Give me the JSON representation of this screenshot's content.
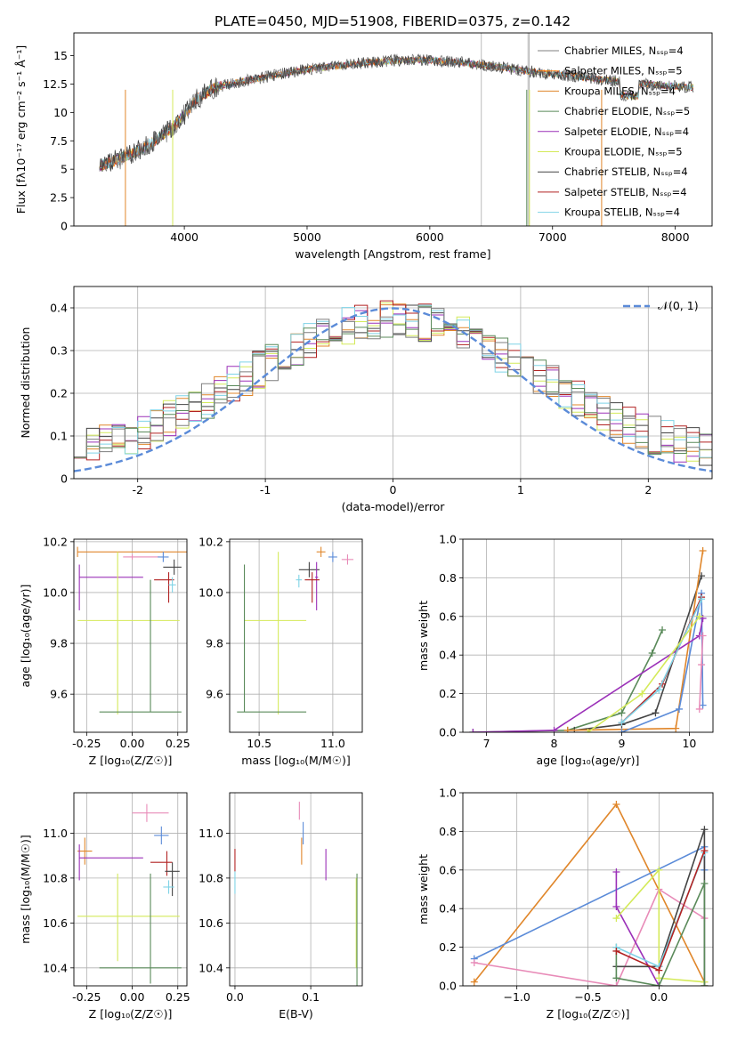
{
  "figure": {
    "title": "PLATE=0450, MJD=51908, FIBERID=0375, z=0.142"
  },
  "chart_data": [
    {
      "id": "spectrum",
      "type": "line",
      "xlabel": "wavelength [Angstrom, rest frame]",
      "ylabel": "Flux [fλ10⁻¹⁷ erg cm⁻² s⁻¹ Å⁻¹]",
      "xlim": [
        3100,
        8300
      ],
      "ylim": [
        0,
        17
      ],
      "xticks": [
        4000,
        5000,
        6000,
        7000,
        8000
      ],
      "yticks": [
        0.0,
        2.5,
        5.0,
        7.5,
        10.0,
        12.5,
        15.0
      ],
      "grid": false,
      "legend_position": "upper-right",
      "continuum": {
        "x": [
          3310,
          3450,
          3600,
          3750,
          3900,
          4000,
          4100,
          4250,
          4500,
          4750,
          5000,
          5250,
          5500,
          5750,
          6000,
          6250,
          6500,
          6750,
          7000,
          7250,
          7500,
          7750,
          8000,
          8150
        ],
        "y": [
          5.3,
          5.8,
          6.5,
          7.4,
          8.6,
          9.8,
          11.2,
          12.2,
          12.8,
          13.3,
          13.8,
          14.1,
          14.4,
          14.6,
          14.6,
          14.4,
          14.1,
          13.7,
          13.4,
          13.1,
          12.8,
          12.5,
          12.3,
          12.2
        ]
      },
      "series": [
        {
          "name": "Chabrier MILES, N_SSP=4",
          "color": "#7f7f7f"
        },
        {
          "name": "Salpeter MILES, N_SSP=5",
          "color": "#ff7f0e"
        },
        {
          "name": "Kroupa MILES, N_SSP=4",
          "color": "#e0862a"
        },
        {
          "name": "Chabrier ELODIE, N_SSP=5",
          "color": "#5a8a5a"
        },
        {
          "name": "Salpeter ELODIE, N_SSP=4",
          "color": "#9b30b8"
        },
        {
          "name": "Kroupa ELODIE, N_SSP=5",
          "color": "#d4ea5a"
        },
        {
          "name": "Chabrier STELIB, N_SSP=4",
          "color": "#444444"
        },
        {
          "name": "Salpeter STELIB, N_SSP=4",
          "color": "#b22222"
        },
        {
          "name": "Kroupa STELIB, N_SSP=4",
          "color": "#7fd3e6"
        }
      ]
    },
    {
      "id": "residuals",
      "type": "area",
      "xlabel": "(data-model)/error",
      "ylabel": "Normed distribution",
      "xlim": [
        -2.5,
        2.5
      ],
      "ylim": [
        0,
        0.45
      ],
      "xticks": [
        -2,
        -1,
        0,
        1,
        2
      ],
      "yticks": [
        0.0,
        0.1,
        0.2,
        0.3,
        0.4
      ],
      "grid": true,
      "legend_position": "upper-right",
      "reference": {
        "name": "𝒩(0, 1)",
        "mean": 0,
        "sigma": 1,
        "color": "#5b8bd8"
      },
      "histogram_bin_width": 0.1,
      "series_colors": [
        "#e0862a",
        "#9b30b8",
        "#d4ea5a",
        "#444444",
        "#b22222",
        "#7fd3e6",
        "#5a8a5a",
        "#7f7f7f"
      ]
    },
    {
      "id": "age_vs_Z",
      "type": "scatter",
      "xlabel": "Z [log₁₀(Z/Z☉)]",
      "ylabel": "age  [log₁₀(age/yr)]",
      "xlim": [
        -0.32,
        0.3
      ],
      "ylim": [
        9.45,
        10.21
      ],
      "xticks": [
        "-0.25",
        "0.00",
        "0.25"
      ],
      "yticks": [
        "9.6",
        "9.8",
        "10.0",
        "10.2"
      ],
      "grid": true,
      "points": [
        {
          "x": -0.3,
          "y": 10.16,
          "xerr": [
            0.0,
            0.6
          ],
          "yerr": [
            0.02,
            0.02
          ],
          "color": "#e0862a"
        },
        {
          "x": 0.0,
          "y": 10.14,
          "xerr": [
            0.05,
            0.15
          ],
          "yerr": [
            0.01,
            0.01
          ],
          "color": "#e88bb8"
        },
        {
          "x": 0.17,
          "y": 10.14,
          "xerr": [
            0.03,
            0.03
          ],
          "yerr": [
            0.02,
            0.02
          ],
          "color": "#5b8bd8"
        },
        {
          "x": 0.23,
          "y": 10.1,
          "xerr": [
            0.06,
            0.04
          ],
          "yerr": [
            0.03,
            0.03
          ],
          "color": "#444444"
        },
        {
          "x": -0.29,
          "y": 10.06,
          "xerr": [
            0.0,
            0.35
          ],
          "yerr": [
            0.13,
            0.05
          ],
          "color": "#9b30b8"
        },
        {
          "x": 0.2,
          "y": 10.05,
          "xerr": [
            0.08,
            0.03
          ],
          "yerr": [
            0.09,
            0.03
          ],
          "color": "#b22222"
        },
        {
          "x": 0.22,
          "y": 10.03,
          "xerr": [
            0.02,
            0.02
          ],
          "yerr": [
            0.03,
            0.03
          ],
          "color": "#7fd3e6"
        },
        {
          "x": -0.08,
          "y": 9.89,
          "xerr": [
            0.22,
            0.34
          ],
          "yerr": [
            0.37,
            0.27
          ],
          "color": "#d4ea5a"
        },
        {
          "x": 0.1,
          "y": 9.53,
          "xerr": [
            0.28,
            0.17
          ],
          "yerr": [
            0.0,
            0.52
          ],
          "color": "#5a8a5a"
        }
      ]
    },
    {
      "id": "age_vs_mass",
      "type": "scatter",
      "xlabel": "mass [log₁₀(M/M☉)]",
      "ylabel": "",
      "xlim": [
        10.3,
        11.2
      ],
      "ylim": [
        9.45,
        10.21
      ],
      "xticks": [
        "10.5",
        "11.0"
      ],
      "yticks": [
        "9.6",
        "9.8",
        "10.0",
        "10.2"
      ],
      "grid": true,
      "points": [
        {
          "x": 10.92,
          "y": 10.16,
          "xerr": [
            0.03,
            0.03
          ],
          "yerr": [
            0.02,
            0.02
          ],
          "color": "#e0862a"
        },
        {
          "x": 11.1,
          "y": 10.13,
          "xerr": [
            0.04,
            0.04
          ],
          "yerr": [
            0.02,
            0.02
          ],
          "color": "#e88bb8"
        },
        {
          "x": 11.0,
          "y": 10.14,
          "xerr": [
            0.03,
            0.03
          ],
          "yerr": [
            0.02,
            0.02
          ],
          "color": "#5b8bd8"
        },
        {
          "x": 10.84,
          "y": 10.09,
          "xerr": [
            0.07,
            0.07
          ],
          "yerr": [
            0.03,
            0.03
          ],
          "color": "#444444"
        },
        {
          "x": 10.89,
          "y": 10.06,
          "xerr": [
            0.01,
            0.01
          ],
          "yerr": [
            0.13,
            0.06
          ],
          "color": "#9b30b8"
        },
        {
          "x": 10.86,
          "y": 10.05,
          "xerr": [
            0.05,
            0.05
          ],
          "yerr": [
            0.09,
            0.03
          ],
          "color": "#b22222"
        },
        {
          "x": 10.77,
          "y": 10.05,
          "xerr": [
            0.02,
            0.02
          ],
          "yerr": [
            0.03,
            0.02
          ],
          "color": "#7fd3e6"
        },
        {
          "x": 10.63,
          "y": 9.89,
          "xerr": [
            0.23,
            0.19
          ],
          "yerr": [
            0.37,
            0.27
          ],
          "color": "#d4ea5a"
        },
        {
          "x": 10.4,
          "y": 9.53,
          "xerr": [
            0.05,
            0.42
          ],
          "yerr": [
            0.0,
            0.58
          ],
          "color": "#5a8a5a"
        }
      ]
    },
    {
      "id": "mass_weight_vs_age",
      "type": "line",
      "xlabel": "age  [log₁₀(age/yr)]",
      "ylabel": "mass weight",
      "xlim": [
        6.65,
        10.35
      ],
      "ylim": [
        0,
        1.0
      ],
      "xticks": [
        "7",
        "8",
        "9",
        "10"
      ],
      "yticks": [
        "0.0",
        "0.2",
        "0.4",
        "0.6",
        "0.8",
        "1.0"
      ],
      "grid": true,
      "series": [
        {
          "color": "#5a8a5a",
          "x": [
            6.8,
            8.2,
            9.0,
            9.45,
            9.6
          ],
          "y": [
            0.0,
            0.01,
            0.1,
            0.41,
            0.53
          ]
        },
        {
          "color": "#444444",
          "x": [
            8.3,
            9.0,
            9.5,
            10.18
          ],
          "y": [
            0.01,
            0.04,
            0.1,
            0.81
          ]
        },
        {
          "color": "#e0862a",
          "x": [
            8.2,
            9.8,
            10.2
          ],
          "y": [
            0.01,
            0.02,
            0.94
          ]
        },
        {
          "color": "#5b8bd8",
          "x": [
            9.0,
            9.85,
            10.18,
            10.2
          ],
          "y": [
            0.0,
            0.12,
            0.72,
            0.14
          ]
        },
        {
          "color": "#9b30b8",
          "x": [
            6.8,
            8.0,
            10.15,
            10.2
          ],
          "y": [
            0.0,
            0.01,
            0.5,
            0.59
          ]
        },
        {
          "color": "#b22222",
          "x": [
            9.0,
            9.6,
            10.18
          ],
          "y": [
            0.05,
            0.25,
            0.7
          ]
        },
        {
          "color": "#7fd3e6",
          "x": [
            9.0,
            9.55,
            10.18
          ],
          "y": [
            0.05,
            0.22,
            0.69
          ]
        },
        {
          "color": "#d4ea5a",
          "x": [
            8.5,
            9.3,
            10.15
          ],
          "y": [
            0.0,
            0.2,
            0.6
          ]
        },
        {
          "color": "#e88bb8",
          "x": [
            10.15,
            10.18,
            10.2
          ],
          "y": [
            0.12,
            0.35,
            0.5
          ]
        }
      ]
    },
    {
      "id": "mass_vs_Z",
      "type": "scatter",
      "xlabel": "Z [log₁₀(Z/Z☉)]",
      "ylabel": "mass [log₁₀(M/M☉)]",
      "xlim": [
        -0.32,
        0.3
      ],
      "ylim": [
        10.32,
        11.18
      ],
      "xticks": [
        "-0.25",
        "0.00",
        "0.25"
      ],
      "yticks": [
        "10.4",
        "10.6",
        "10.8",
        "11.0"
      ],
      "grid": true,
      "points": [
        {
          "x": 0.08,
          "y": 11.09,
          "xerr": [
            0.08,
            0.12
          ],
          "yerr": [
            0.04,
            0.04
          ],
          "color": "#e88bb8"
        },
        {
          "x": 0.16,
          "y": 10.99,
          "xerr": [
            0.04,
            0.04
          ],
          "yerr": [
            0.04,
            0.04
          ],
          "color": "#5b8bd8"
        },
        {
          "x": -0.26,
          "y": 10.92,
          "xerr": [
            0.04,
            0.04
          ],
          "yerr": [
            0.06,
            0.06
          ],
          "color": "#e0862a"
        },
        {
          "x": -0.29,
          "y": 10.89,
          "xerr": [
            0.0,
            0.35
          ],
          "yerr": [
            0.1,
            0.06
          ],
          "color": "#9b30b8"
        },
        {
          "x": 0.19,
          "y": 10.87,
          "xerr": [
            0.09,
            0.03
          ],
          "yerr": [
            0.06,
            0.05
          ],
          "color": "#b22222"
        },
        {
          "x": 0.22,
          "y": 10.83,
          "xerr": [
            0.04,
            0.04
          ],
          "yerr": [
            0.11,
            0.04
          ],
          "color": "#444444"
        },
        {
          "x": 0.2,
          "y": 10.76,
          "xerr": [
            0.03,
            0.03
          ],
          "yerr": [
            0.03,
            0.03
          ],
          "color": "#7fd3e6"
        },
        {
          "x": -0.08,
          "y": 10.63,
          "xerr": [
            0.22,
            0.34
          ],
          "yerr": [
            0.2,
            0.19
          ],
          "color": "#d4ea5a"
        },
        {
          "x": 0.1,
          "y": 10.4,
          "xerr": [
            0.28,
            0.17
          ],
          "yerr": [
            0.07,
            0.42
          ],
          "color": "#5a8a5a"
        }
      ]
    },
    {
      "id": "mass_vs_ebv",
      "type": "scatter",
      "xlabel": "E(B-V)",
      "ylabel": "",
      "xlim": [
        -0.007,
        0.168
      ],
      "ylim": [
        10.32,
        11.18
      ],
      "xticks": [
        "0.0",
        "0.1"
      ],
      "yticks": [
        "10.4",
        "10.6",
        "10.8",
        "11.0"
      ],
      "grid": true,
      "points": [
        {
          "x": 0.0,
          "y": 10.78,
          "xerr": [
            0.0,
            0.0
          ],
          "yerr": [
            0.05,
            0.05
          ],
          "color": "#7fd3e6"
        },
        {
          "x": 0.0,
          "y": 10.88,
          "xerr": [
            0.0,
            0.0
          ],
          "yerr": [
            0.05,
            0.05
          ],
          "color": "#b22222"
        },
        {
          "x": 0.085,
          "y": 11.1,
          "xerr": [
            0.0,
            0.0
          ],
          "yerr": [
            0.04,
            0.04
          ],
          "color": "#e88bb8"
        },
        {
          "x": 0.09,
          "y": 11.0,
          "xerr": [
            0.0,
            0.0
          ],
          "yerr": [
            0.05,
            0.05
          ],
          "color": "#5b8bd8"
        },
        {
          "x": 0.088,
          "y": 10.92,
          "xerr": [
            0.0,
            0.0
          ],
          "yerr": [
            0.06,
            0.06
          ],
          "color": "#e0862a"
        },
        {
          "x": 0.12,
          "y": 10.87,
          "xerr": [
            0.0,
            0.0
          ],
          "yerr": [
            0.08,
            0.06
          ],
          "color": "#9b30b8"
        },
        {
          "x": 0.16,
          "y": 10.6,
          "xerr": [
            0.0,
            0.0
          ],
          "yerr": [
            0.2,
            0.2
          ],
          "color": "#d4ea5a"
        },
        {
          "x": 0.161,
          "y": 10.6,
          "xerr": [
            0.0,
            0.0
          ],
          "yerr": [
            0.28,
            0.22
          ],
          "color": "#5a8a5a"
        }
      ]
    },
    {
      "id": "mass_weight_vs_Z",
      "type": "line",
      "xlabel": "Z [log₁₀(Z/Z☉)]",
      "ylabel": "mass weight",
      "xlim": [
        -1.38,
        0.38
      ],
      "ylim": [
        0,
        1.0
      ],
      "xticks": [
        "−1.0",
        "−0.5",
        "0.0"
      ],
      "yticks": [
        "0.0",
        "0.2",
        "0.4",
        "0.6",
        "0.8",
        "1.0"
      ],
      "grid": true,
      "series": [
        {
          "color": "#e0862a",
          "x": [
            -1.3,
            -0.3,
            0.32,
            0.32
          ],
          "y": [
            0.02,
            0.94,
            0.02,
            0.0
          ]
        },
        {
          "color": "#5b8bd8",
          "x": [
            -1.3,
            0.32,
            0.32
          ],
          "y": [
            0.14,
            0.72,
            0.6
          ]
        },
        {
          "color": "#e88bb8",
          "x": [
            -1.3,
            -0.3,
            0.0,
            0.32
          ],
          "y": [
            0.12,
            0.0,
            0.5,
            0.35
          ]
        },
        {
          "color": "#9b30b8",
          "x": [
            -0.3,
            -0.3,
            0.0
          ],
          "y": [
            0.59,
            0.41,
            0.0
          ]
        },
        {
          "color": "#444444",
          "x": [
            -0.3,
            0.0,
            0.32,
            0.32
          ],
          "y": [
            0.1,
            0.1,
            0.81,
            0.0
          ]
        },
        {
          "color": "#d4ea5a",
          "x": [
            -0.3,
            0.0,
            0.0,
            0.32
          ],
          "y": [
            0.35,
            0.6,
            0.04,
            0.02
          ]
        },
        {
          "color": "#5a8a5a",
          "x": [
            -0.3,
            -0.3,
            0.0,
            0.32,
            0.32
          ],
          "y": [
            0.2,
            0.04,
            0.0,
            0.53,
            0.0
          ]
        },
        {
          "color": "#7fd3e6",
          "x": [
            -0.3,
            0.0,
            0.32
          ],
          "y": [
            0.2,
            0.1,
            0.69
          ]
        },
        {
          "color": "#b22222",
          "x": [
            -0.3,
            0.0,
            0.32
          ],
          "y": [
            0.18,
            0.08,
            0.7
          ]
        }
      ]
    }
  ]
}
